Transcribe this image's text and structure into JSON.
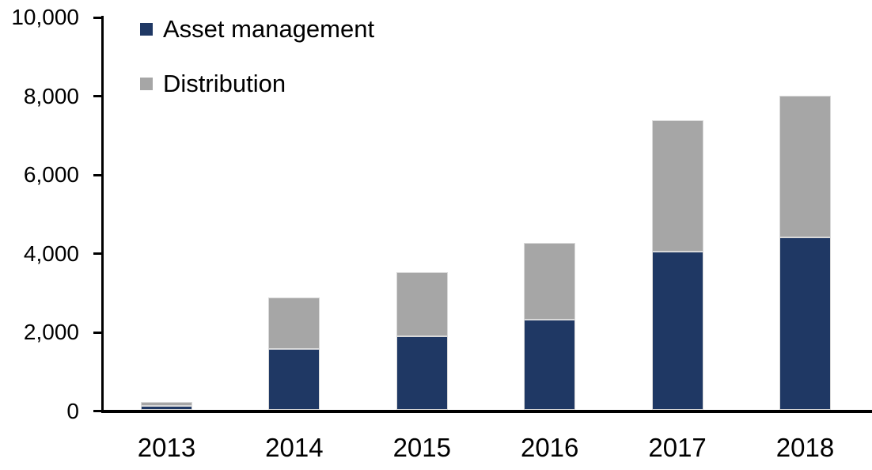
{
  "chart_data": {
    "type": "bar",
    "stacked": true,
    "title": "",
    "xlabel": "",
    "ylabel": "",
    "grid": false,
    "legend_position": "top-left",
    "categories": [
      "2013",
      "2014",
      "2015",
      "2016",
      "2017",
      "2018"
    ],
    "series": [
      {
        "name": "Asset management",
        "color": "#1f3864",
        "values": [
          100,
          1550,
          1880,
          2300,
          4030,
          4400
        ]
      },
      {
        "name": "Distribution",
        "color": "#a6a6a6",
        "values": [
          100,
          1320,
          1620,
          1950,
          3350,
          3600
        ]
      }
    ],
    "ylim": [
      0,
      10000
    ],
    "ytick_step": 2000,
    "y_tick_labels": [
      "0",
      "2,000",
      "4,000",
      "6,000",
      "8,000",
      "10,000"
    ],
    "axis_color": "#000000",
    "background_color": "#ffffff"
  }
}
